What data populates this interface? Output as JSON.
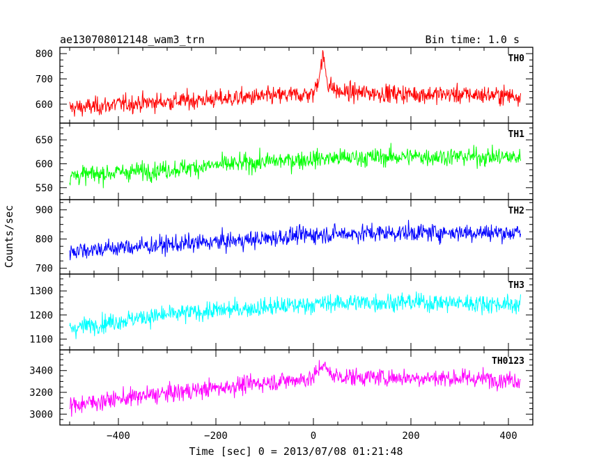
{
  "header": {
    "title": "ae130708012148_wam3_trn",
    "bin_time": "Bin time: 1.0 s"
  },
  "axes": {
    "ylabel": "Counts/sec",
    "xlabel": "Time [sec] 0 = 2013/07/08 01:21:48"
  },
  "chart_data": {
    "type": "line",
    "xlim": [
      -520,
      450
    ],
    "x_ticks": [
      -400,
      -200,
      0,
      200,
      400
    ],
    "x_tick_labels": [
      "−400",
      "−200",
      "0",
      "200",
      "400"
    ],
    "panels": [
      {
        "name": "TH0",
        "color": "#ff0000",
        "ylim": [
          525,
          825
        ],
        "y_ticks": [
          600,
          700,
          800
        ],
        "y_tick_labels": [
          "600",
          "700",
          "800"
        ],
        "series": [
          [
            -500,
            585
          ],
          [
            -450,
            590
          ],
          [
            -400,
            600
          ],
          [
            -350,
            605
          ],
          [
            -300,
            610
          ],
          [
            -250,
            615
          ],
          [
            -200,
            620
          ],
          [
            -150,
            625
          ],
          [
            -100,
            630
          ],
          [
            -50,
            635
          ],
          [
            0,
            640
          ],
          [
            10,
            700
          ],
          [
            20,
            790
          ],
          [
            30,
            680
          ],
          [
            50,
            648
          ],
          [
            100,
            645
          ],
          [
            200,
            640
          ],
          [
            300,
            638
          ],
          [
            400,
            635
          ],
          [
            425,
            630
          ]
        ]
      },
      {
        "name": "TH1",
        "color": "#00ff00",
        "ylim": [
          525,
          685
        ],
        "y_ticks": [
          550,
          600,
          650
        ],
        "y_tick_labels": [
          "550",
          "600",
          "650"
        ],
        "series": [
          [
            -500,
            575
          ],
          [
            -450,
            578
          ],
          [
            -400,
            582
          ],
          [
            -350,
            585
          ],
          [
            -300,
            588
          ],
          [
            -250,
            592
          ],
          [
            -200,
            597
          ],
          [
            -150,
            600
          ],
          [
            -100,
            604
          ],
          [
            -50,
            607
          ],
          [
            0,
            610
          ],
          [
            50,
            612
          ],
          [
            100,
            613
          ],
          [
            200,
            615
          ],
          [
            300,
            615
          ],
          [
            400,
            614
          ],
          [
            425,
            613
          ]
        ]
      },
      {
        "name": "TH2",
        "color": "#0000ff",
        "ylim": [
          680,
          935
        ],
        "y_ticks": [
          700,
          800,
          900
        ],
        "y_tick_labels": [
          "700",
          "800",
          "900"
        ],
        "series": [
          [
            -500,
            760
          ],
          [
            -450,
            765
          ],
          [
            -400,
            770
          ],
          [
            -350,
            775
          ],
          [
            -300,
            780
          ],
          [
            -250,
            785
          ],
          [
            -200,
            790
          ],
          [
            -150,
            795
          ],
          [
            -100,
            800
          ],
          [
            -50,
            810
          ],
          [
            0,
            815
          ],
          [
            50,
            818
          ],
          [
            100,
            820
          ],
          [
            200,
            822
          ],
          [
            300,
            823
          ],
          [
            400,
            822
          ],
          [
            425,
            820
          ]
        ]
      },
      {
        "name": "TH3",
        "color": "#00ffff",
        "ylim": [
          1055,
          1370
        ],
        "y_ticks": [
          1100,
          1200,
          1300
        ],
        "y_tick_labels": [
          "1100",
          "1200",
          "1300"
        ],
        "series": [
          [
            -500,
            1145
          ],
          [
            -450,
            1160
          ],
          [
            -400,
            1175
          ],
          [
            -350,
            1190
          ],
          [
            -300,
            1200
          ],
          [
            -250,
            1210
          ],
          [
            -200,
            1218
          ],
          [
            -150,
            1225
          ],
          [
            -100,
            1232
          ],
          [
            -50,
            1238
          ],
          [
            0,
            1245
          ],
          [
            50,
            1250
          ],
          [
            100,
            1252
          ],
          [
            200,
            1253
          ],
          [
            300,
            1250
          ],
          [
            400,
            1245
          ],
          [
            425,
            1240
          ]
        ]
      },
      {
        "name": "TH0123",
        "color": "#ff00ff",
        "ylim": [
          2900,
          3590
        ],
        "y_ticks": [
          3000,
          3200,
          3400
        ],
        "y_tick_labels": [
          "3000",
          "3200",
          "3400"
        ],
        "series": [
          [
            -500,
            3080
          ],
          [
            -450,
            3110
          ],
          [
            -400,
            3140
          ],
          [
            -350,
            3165
          ],
          [
            -300,
            3190
          ],
          [
            -250,
            3215
          ],
          [
            -200,
            3240
          ],
          [
            -150,
            3265
          ],
          [
            -100,
            3290
          ],
          [
            -50,
            3310
          ],
          [
            0,
            3330
          ],
          [
            10,
            3400
          ],
          [
            20,
            3470
          ],
          [
            30,
            3380
          ],
          [
            50,
            3345
          ],
          [
            100,
            3340
          ],
          [
            200,
            3335
          ],
          [
            300,
            3330
          ],
          [
            400,
            3320
          ],
          [
            425,
            3310
          ]
        ]
      }
    ]
  }
}
